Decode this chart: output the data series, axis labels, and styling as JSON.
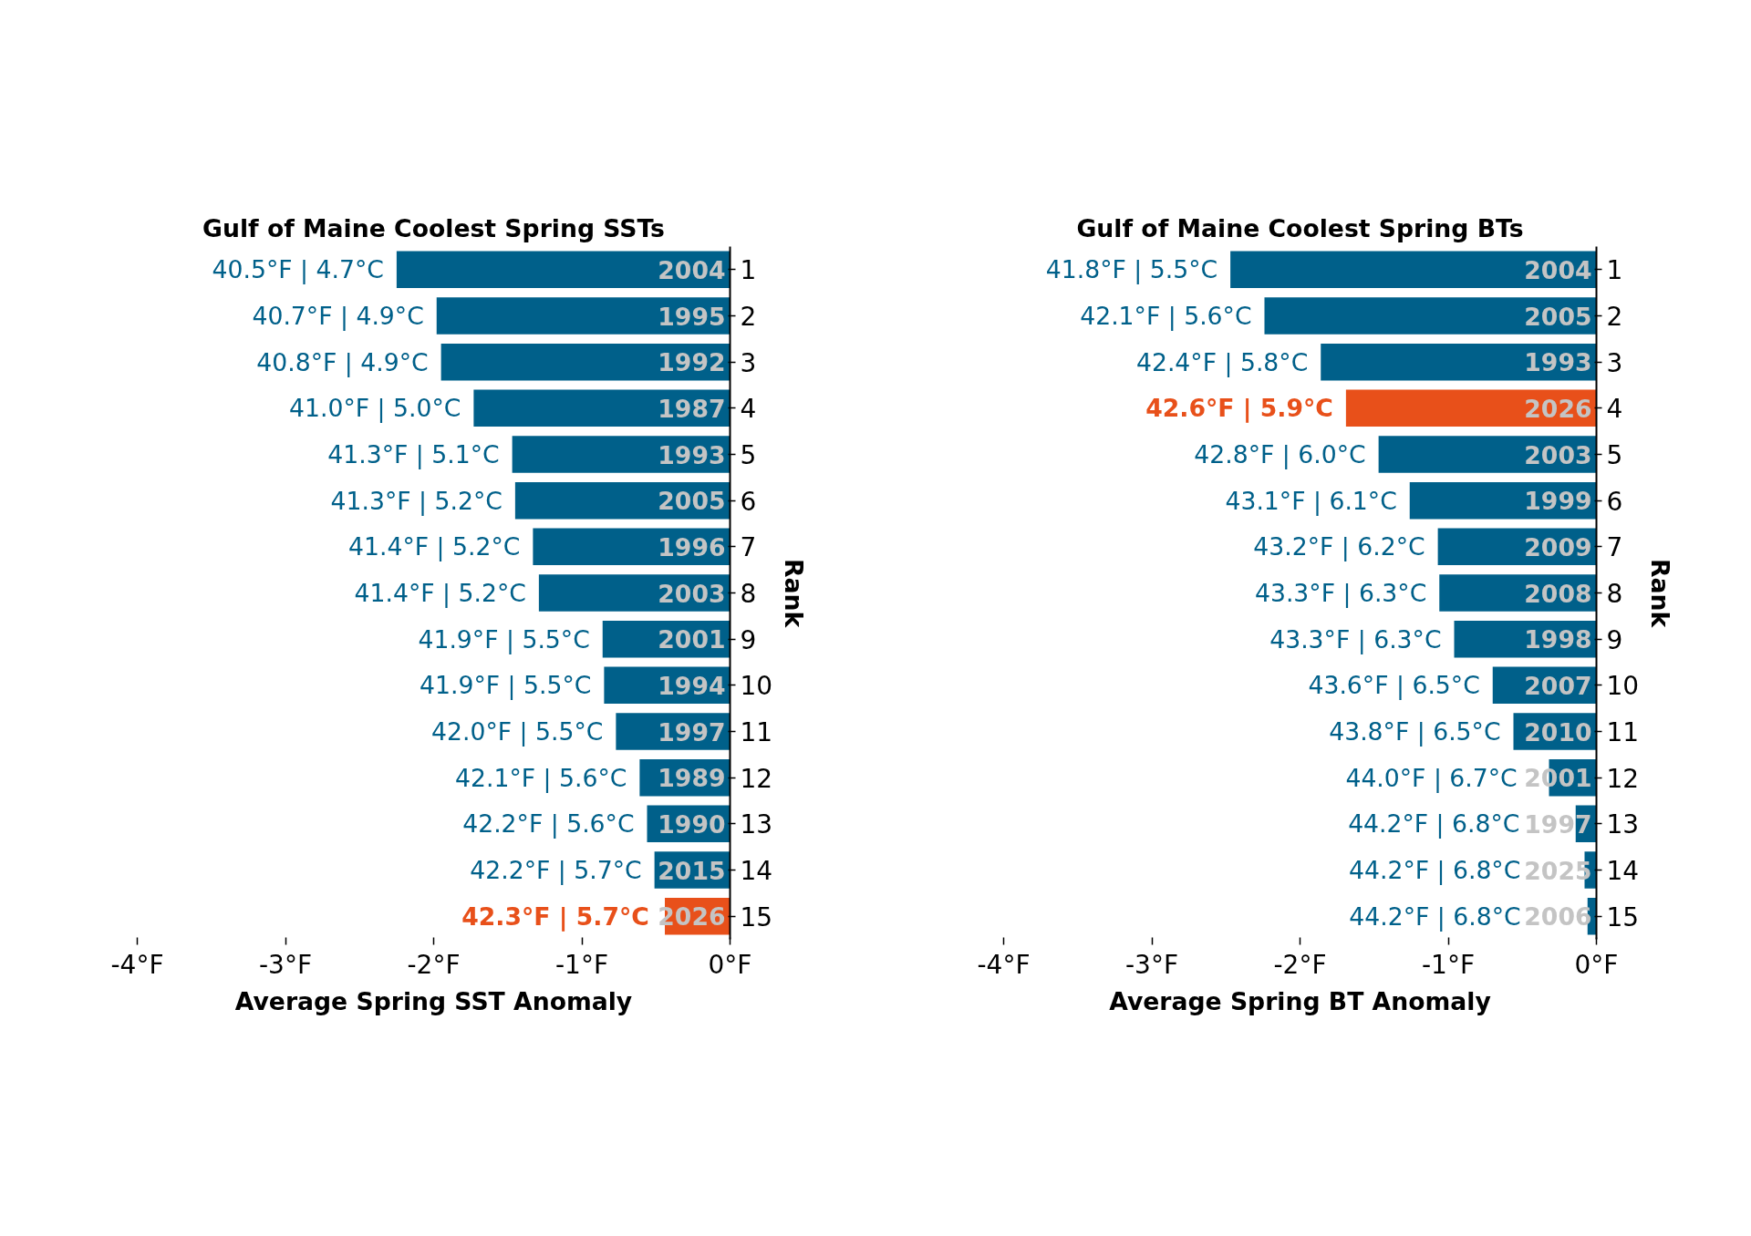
{
  "chart_data": [
    {
      "type": "bar",
      "orientation": "horizontal",
      "title": "Gulf of Maine Coolest Spring SSTs",
      "xlabel": "Average Spring SST Anomaly",
      "ylabel": "Rank",
      "color": "#00608a",
      "categories": [
        "1",
        "2",
        "3",
        "4",
        "5",
        "6",
        "7",
        "8",
        "9",
        "10",
        "11",
        "12",
        "13",
        "14",
        "15"
      ],
      "values": [
        -2.25,
        -1.98,
        -1.95,
        -1.73,
        -1.47,
        -1.45,
        -1.33,
        -1.29,
        -0.86,
        -0.85,
        -0.77,
        -0.61,
        -0.56,
        -0.51,
        -0.44
      ],
      "colors": [
        "#00608a",
        "#00608a",
        "#00608a",
        "#00608a",
        "#00608a",
        "#00608a",
        "#00608a",
        "#00608a",
        "#00608a",
        "#00608a",
        "#00608a",
        "#00608a",
        "#00608a",
        "#00608a",
        "#e8501a"
      ],
      "annotations": [
        {
          "text": "40.5°F | 4.7°C",
          "x": -2.25,
          "y": "1"
        },
        {
          "text": "40.7°F | 4.9°C",
          "x": -1.98,
          "y": "2"
        },
        {
          "text": "40.8°F | 4.9°C",
          "x": -1.95,
          "y": "3"
        },
        {
          "text": "41.0°F | 5.0°C",
          "x": -1.73,
          "y": "4"
        },
        {
          "text": "41.3°F | 5.1°C",
          "x": -1.47,
          "y": "5"
        },
        {
          "text": "41.3°F | 5.2°C",
          "x": -1.45,
          "y": "6"
        },
        {
          "text": "41.4°F | 5.2°C",
          "x": -1.33,
          "y": "7"
        },
        {
          "text": "41.4°F | 5.2°C",
          "x": -1.29,
          "y": "8"
        },
        {
          "text": "41.9°F | 5.5°C",
          "x": -0.86,
          "y": "9"
        },
        {
          "text": "41.9°F | 5.5°C",
          "x": -0.85,
          "y": "10"
        },
        {
          "text": "42.0°F | 5.5°C",
          "x": -0.77,
          "y": "11"
        },
        {
          "text": "42.1°F | 5.6°C",
          "x": -0.61,
          "y": "12"
        },
        {
          "text": "42.2°F | 5.6°C",
          "x": -0.56,
          "y": "13"
        },
        {
          "text": "42.2°F | 5.7°C",
          "x": -0.51,
          "y": "14"
        },
        {
          "text": "42.3°F | 5.7°C",
          "x": -0.44,
          "y": "15"
        },
        {
          "text": "2004",
          "x": 0,
          "y": "1"
        },
        {
          "text": "1995",
          "x": 0,
          "y": "2"
        },
        {
          "text": "1992",
          "x": 0,
          "y": "3"
        },
        {
          "text": "1987",
          "x": 0,
          "y": "4"
        },
        {
          "text": "1993",
          "x": 0,
          "y": "5"
        },
        {
          "text": "2005",
          "x": 0,
          "y": "6"
        },
        {
          "text": "1996",
          "x": 0,
          "y": "7"
        },
        {
          "text": "2003",
          "x": 0,
          "y": "8"
        },
        {
          "text": "2001",
          "x": 0,
          "y": "9"
        },
        {
          "text": "1994",
          "x": 0,
          "y": "10"
        },
        {
          "text": "1997",
          "x": 0,
          "y": "11"
        },
        {
          "text": "1989",
          "x": 0,
          "y": "12"
        },
        {
          "text": "1990",
          "x": 0,
          "y": "13"
        },
        {
          "text": "2015",
          "x": 0,
          "y": "14"
        },
        {
          "text": "2026",
          "x": 0,
          "y": "15"
        }
      ],
      "xlim": [
        -4,
        0
      ],
      "xticks": [
        {
          "value": -4,
          "label": "-4°F"
        },
        {
          "value": -3,
          "label": "-3°F"
        },
        {
          "value": -2,
          "label": "-2°F"
        },
        {
          "value": -1,
          "label": "-1°F"
        },
        {
          "value": 0,
          "label": "0°F"
        }
      ],
      "grid": false
    },
    {
      "type": "bar",
      "orientation": "horizontal",
      "title": "Gulf of Maine Coolest Spring BTs",
      "xlabel": "Average Spring BT Anomaly",
      "ylabel": "Rank",
      "color": "#00608a",
      "categories": [
        "1",
        "2",
        "3",
        "4",
        "5",
        "6",
        "7",
        "8",
        "9",
        "10",
        "11",
        "12",
        "13",
        "14",
        "15"
      ],
      "values": [
        -2.47,
        -2.24,
        -1.86,
        -1.69,
        -1.47,
        -1.26,
        -1.07,
        -1.06,
        -0.96,
        -0.7,
        -0.56,
        -0.32,
        -0.14,
        -0.08,
        -0.06
      ],
      "colors": [
        "#00608a",
        "#00608a",
        "#00608a",
        "#e8501a",
        "#00608a",
        "#00608a",
        "#00608a",
        "#00608a",
        "#00608a",
        "#00608a",
        "#00608a",
        "#00608a",
        "#00608a",
        "#00608a",
        "#00608a"
      ],
      "annotations": [
        {
          "text": "41.8°F | 5.5°C",
          "x": -2.47,
          "y": "1"
        },
        {
          "text": "42.1°F | 5.6°C",
          "x": -2.24,
          "y": "2"
        },
        {
          "text": "42.4°F | 5.8°C",
          "x": -1.86,
          "y": "3"
        },
        {
          "text": "42.6°F | 5.9°C",
          "x": -1.69,
          "y": "4"
        },
        {
          "text": "42.8°F | 6.0°C",
          "x": -1.47,
          "y": "5"
        },
        {
          "text": "43.1°F | 6.1°C",
          "x": -1.26,
          "y": "6"
        },
        {
          "text": "43.2°F | 6.2°C",
          "x": -1.07,
          "y": "7"
        },
        {
          "text": "43.3°F | 6.3°C",
          "x": -1.06,
          "y": "8"
        },
        {
          "text": "43.3°F | 6.3°C",
          "x": -0.96,
          "y": "9"
        },
        {
          "text": "43.6°F | 6.5°C",
          "x": -0.7,
          "y": "10"
        },
        {
          "text": "43.8°F | 6.5°C",
          "x": -0.56,
          "y": "11"
        },
        {
          "text": "44.0°F | 6.7°C",
          "x": -0.32,
          "y": "12"
        },
        {
          "text": "44.2°F | 6.8°C",
          "x": -0.14,
          "y": "13"
        },
        {
          "text": "44.2°F | 6.8°C",
          "x": -0.08,
          "y": "14"
        },
        {
          "text": "44.2°F | 6.8°C",
          "x": -0.06,
          "y": "15"
        },
        {
          "text": "2004",
          "x": 0,
          "y": "1"
        },
        {
          "text": "2005",
          "x": 0,
          "y": "2"
        },
        {
          "text": "1993",
          "x": 0,
          "y": "3"
        },
        {
          "text": "2026",
          "x": 0,
          "y": "4"
        },
        {
          "text": "2003",
          "x": 0,
          "y": "5"
        },
        {
          "text": "1999",
          "x": 0,
          "y": "6"
        },
        {
          "text": "2009",
          "x": 0,
          "y": "7"
        },
        {
          "text": "2008",
          "x": 0,
          "y": "8"
        },
        {
          "text": "1998",
          "x": 0,
          "y": "9"
        },
        {
          "text": "2007",
          "x": 0,
          "y": "10"
        },
        {
          "text": "2010",
          "x": 0,
          "y": "11"
        },
        {
          "text": "2001",
          "x": 0,
          "y": "12"
        },
        {
          "text": "1997",
          "x": 0,
          "y": "13"
        },
        {
          "text": "2025",
          "x": 0,
          "y": "14"
        },
        {
          "text": "2006",
          "x": 0,
          "y": "15"
        }
      ],
      "xlim": [
        -4,
        0
      ],
      "xticks": [
        {
          "value": -4,
          "label": "-4°F"
        },
        {
          "value": -3,
          "label": "-3°F"
        },
        {
          "value": -2,
          "label": "-2°F"
        },
        {
          "value": -1,
          "label": "-1°F"
        },
        {
          "value": 0,
          "label": "0°F"
        }
      ],
      "grid": false
    }
  ]
}
